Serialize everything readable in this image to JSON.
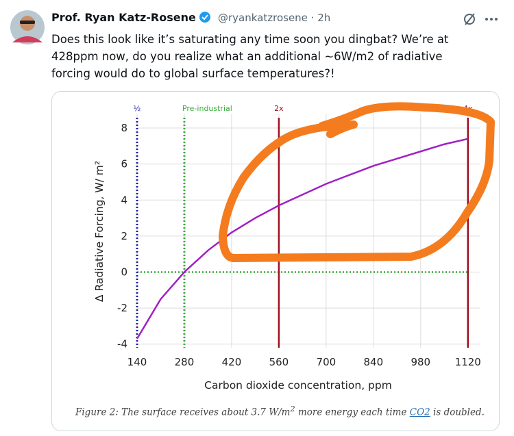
{
  "header": {
    "name": "Prof. Ryan Katz-Rosene",
    "handle": "@ryankatzrosene · 2h"
  },
  "tweet": {
    "lines": [
      "Does this look like it’s saturating any time soon you dingbat? We’re at",
      "428ppm now, do you realize what an additional ~6W/m2 of radiative",
      "forcing would do to global surface temperatures?!"
    ]
  },
  "chart_data": {
    "type": "line",
    "x_label": "Carbon dioxide concentration, ppm",
    "y_label": "Δ Radiative Forcing, W/ m²",
    "x": [
      140,
      210,
      280,
      350,
      420,
      490,
      560,
      630,
      700,
      770,
      840,
      910,
      980,
      1050,
      1120
    ],
    "series": [
      {
        "color": "#a11fc4",
        "values": [
          -3.7,
          -1.5,
          0,
          1.2,
          2.2,
          3.0,
          3.7,
          4.3,
          4.9,
          5.4,
          5.9,
          6.3,
          6.7,
          7.1,
          7.4
        ]
      }
    ],
    "xlim": [
      140,
      1155
    ],
    "ylim": [
      -4.2,
      8.8
    ],
    "xticks": [
      140,
      280,
      420,
      560,
      700,
      840,
      980,
      1120
    ],
    "yticks": [
      -4,
      -2,
      0,
      2,
      4,
      6,
      8
    ],
    "grid": true,
    "reference_lines": [
      {
        "x": 140,
        "label": "½",
        "color": "#1f1fa8",
        "style": "dotted"
      },
      {
        "x": 280,
        "label": "Pre-industrial",
        "color": "#3aab3a",
        "style": "dotted"
      },
      {
        "x": 560,
        "label": "2x",
        "color": "#9e1020",
        "style": "solid"
      },
      {
        "x": 1120,
        "label": "4x",
        "color": "#9e1020",
        "style": "solid"
      }
    ],
    "reference_hline": {
      "y": 0,
      "color": "#3aab3a",
      "style": "dotted"
    },
    "caption": {
      "text1": "Figure 2: The surface receives about 3.7 W/m",
      "sup": "2",
      "text2": " more energy each time ",
      "link": "CO2",
      "text3": " is doubled."
    }
  }
}
